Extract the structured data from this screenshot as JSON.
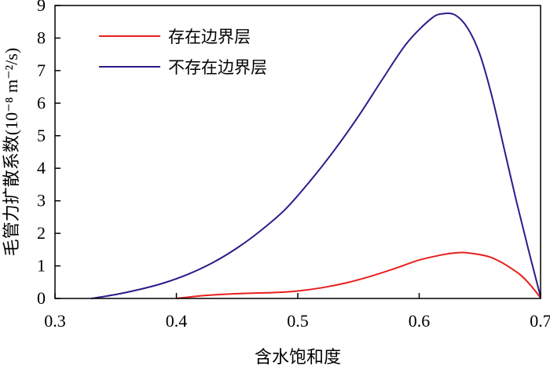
{
  "chart_data": {
    "type": "line",
    "xlabel": "含水饱和度",
    "ylabel": "毛管力扩散系数(10⁻⁸ m⁻²/s)",
    "xlim": [
      0.3,
      0.7
    ],
    "ylim": [
      0,
      9
    ],
    "xticks": [
      "0.3",
      "0.4",
      "0.5",
      "0.6",
      "0.7"
    ],
    "yticks": [
      "0",
      "1",
      "2",
      "3",
      "4",
      "5",
      "6",
      "7",
      "8",
      "9"
    ],
    "grid": false,
    "legend_position": "top-left",
    "series": [
      {
        "name": "存在边界层",
        "color": "#e8201f",
        "x": [
          0.4,
          0.42,
          0.44,
          0.46,
          0.48,
          0.5,
          0.52,
          0.54,
          0.56,
          0.58,
          0.6,
          0.62,
          0.63,
          0.64,
          0.66,
          0.68,
          0.69,
          0.7
        ],
        "y": [
          0.0,
          0.08,
          0.13,
          0.16,
          0.18,
          0.23,
          0.33,
          0.48,
          0.68,
          0.92,
          1.18,
          1.35,
          1.4,
          1.4,
          1.25,
          0.82,
          0.48,
          0.02
        ]
      },
      {
        "name": "不存在边界层",
        "color": "#2e1a8a",
        "x": [
          0.33,
          0.35,
          0.37,
          0.39,
          0.41,
          0.43,
          0.45,
          0.47,
          0.49,
          0.51,
          0.53,
          0.55,
          0.57,
          0.59,
          0.61,
          0.62,
          0.63,
          0.64,
          0.65,
          0.66,
          0.67,
          0.68,
          0.69,
          0.7
        ],
        "y": [
          0.0,
          0.12,
          0.28,
          0.48,
          0.75,
          1.1,
          1.55,
          2.1,
          2.75,
          3.6,
          4.55,
          5.6,
          6.75,
          7.85,
          8.6,
          8.75,
          8.7,
          8.3,
          7.5,
          6.2,
          4.6,
          3.0,
          1.5,
          0.05
        ]
      }
    ]
  }
}
